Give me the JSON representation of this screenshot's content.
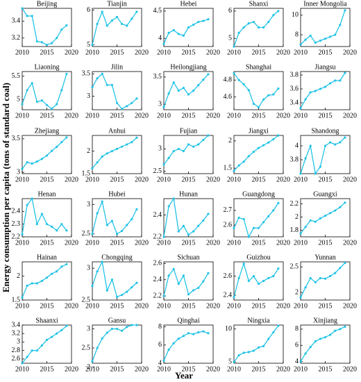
{
  "ylabel": "Energy consumption per capita (tons of standard coal)",
  "xlabel": "Year",
  "chart_data": [
    {
      "type": "line",
      "title": "Beijing",
      "color": "#22c3e6",
      "x": [
        2010,
        2011,
        2012,
        2013,
        2014,
        2015,
        2016,
        2017,
        2018,
        2019
      ],
      "values": [
        3.55,
        3.46,
        3.46,
        3.16,
        3.15,
        3.12,
        3.14,
        3.2,
        3.3,
        3.35
      ],
      "xlim": [
        2010,
        2020
      ],
      "xticks": [
        2010,
        2015,
        2020
      ],
      "ylim": [
        3.1,
        3.55
      ],
      "yticks": [
        3.2,
        3.4
      ]
    },
    {
      "type": "line",
      "title": "Tianjin",
      "color": "#22c3e6",
      "x": [
        2010,
        2011,
        2012,
        2013,
        2014,
        2015,
        2016,
        2017,
        2018,
        2019
      ],
      "values": [
        5.0,
        5.6,
        5.95,
        5.55,
        5.7,
        5.8,
        5.6,
        5.55,
        5.75,
        5.95
      ],
      "xlim": [
        2010,
        2020
      ],
      "xticks": [
        2010,
        2015,
        2020
      ],
      "ylim": [
        4.95,
        6.05
      ],
      "yticks": [
        5,
        6
      ]
    },
    {
      "type": "line",
      "title": "Hebei",
      "color": "#22c3e6",
      "x": [
        2010,
        2011,
        2012,
        2013,
        2014,
        2015,
        2016,
        2017,
        2018,
        2019
      ],
      "values": [
        3.9,
        4.1,
        4.15,
        4.08,
        4.05,
        4.2,
        4.25,
        4.3,
        4.32,
        4.35
      ],
      "xlim": [
        2010,
        2020
      ],
      "xticks": [
        2010,
        2015,
        2020
      ],
      "ylim": [
        3.85,
        4.55
      ],
      "yticks": [
        4,
        4.5
      ]
    },
    {
      "type": "line",
      "title": "Shanxi",
      "color": "#22c3e6",
      "x": [
        2010,
        2011,
        2012,
        2013,
        2014,
        2015,
        2016,
        2017,
        2018,
        2019
      ],
      "values": [
        4.7,
        5.2,
        5.4,
        5.55,
        5.6,
        5.4,
        5.4,
        5.6,
        5.85,
        6.0
      ],
      "xlim": [
        2010,
        2020
      ],
      "xticks": [
        2010,
        2015,
        2020
      ],
      "ylim": [
        4.7,
        6.1
      ],
      "yticks": [
        5,
        6
      ]
    },
    {
      "type": "line",
      "title": "Inner Mongolia",
      "color": "#22c3e6",
      "x": [
        2010,
        2011,
        2012,
        2013,
        2014,
        2015,
        2016,
        2017,
        2018,
        2019
      ],
      "values": [
        7.0,
        7.5,
        7.9,
        7.2,
        7.4,
        7.6,
        7.8,
        8.0,
        9.0,
        10.5
      ],
      "xlim": [
        2010,
        2020
      ],
      "xticks": [
        2010,
        2015,
        2020
      ],
      "ylim": [
        6.8,
        10.7
      ],
      "yticks": [
        8,
        10
      ]
    },
    {
      "type": "line",
      "title": "Liaoning",
      "color": "#22c3e6",
      "x": [
        2010,
        2011,
        2012,
        2013,
        2014,
        2015,
        2016,
        2017,
        2018,
        2019
      ],
      "values": [
        4.9,
        5.2,
        5.35,
        4.95,
        4.98,
        4.88,
        4.8,
        4.9,
        5.2,
        5.55
      ],
      "xlim": [
        2010,
        2020
      ],
      "xticks": [
        2010,
        2015,
        2020
      ],
      "ylim": [
        4.78,
        5.6
      ],
      "yticks": [
        5,
        5.5
      ]
    },
    {
      "type": "line",
      "title": "Jilin",
      "color": "#22c3e6",
      "x": [
        2010,
        2011,
        2012,
        2013,
        2014,
        2015,
        2016,
        2017,
        2018,
        2019
      ],
      "values": [
        3.2,
        3.4,
        3.5,
        3.25,
        3.25,
        2.85,
        2.72,
        2.78,
        2.85,
        2.95
      ],
      "xlim": [
        2010,
        2020
      ],
      "xticks": [
        2010,
        2015,
        2020
      ],
      "ylim": [
        2.7,
        3.55
      ],
      "yticks": [
        3,
        3.5
      ]
    },
    {
      "type": "line",
      "title": "Heilongjiang",
      "color": "#22c3e6",
      "x": [
        2010,
        2011,
        2012,
        2013,
        2014,
        2015,
        2016,
        2017,
        2018,
        2019
      ],
      "values": [
        2.95,
        3.2,
        3.4,
        3.25,
        3.3,
        3.18,
        3.25,
        3.35,
        3.45,
        3.55
      ],
      "xlim": [
        2010,
        2020
      ],
      "xticks": [
        2010,
        2015,
        2020
      ],
      "ylim": [
        2.9,
        3.6
      ],
      "yticks": [
        3,
        3.5
      ]
    },
    {
      "type": "line",
      "title": "Shanghai",
      "color": "#22c3e6",
      "x": [
        2010,
        2011,
        2012,
        2013,
        2014,
        2015,
        2016,
        2017,
        2018,
        2019
      ],
      "values": [
        4.88,
        4.8,
        4.75,
        4.68,
        4.52,
        4.48,
        4.57,
        4.62,
        4.63,
        4.7
      ],
      "xlim": [
        2010,
        2020
      ],
      "xticks": [
        2010,
        2015,
        2020
      ],
      "ylim": [
        4.45,
        4.9
      ],
      "yticks": [
        4.6,
        4.8
      ]
    },
    {
      "type": "line",
      "title": "Jiangsu",
      "color": "#22c3e6",
      "x": [
        2010,
        2011,
        2012,
        2013,
        2014,
        2015,
        2016,
        2017,
        2018,
        2019
      ],
      "values": [
        3.32,
        3.45,
        3.55,
        3.57,
        3.6,
        3.63,
        3.68,
        3.72,
        3.72,
        3.83
      ],
      "xlim": [
        2010,
        2020
      ],
      "xticks": [
        2010,
        2015,
        2020
      ],
      "ylim": [
        3.3,
        3.85
      ],
      "yticks": [
        3.4,
        3.6,
        3.8
      ]
    },
    {
      "type": "line",
      "title": "Zhejiang",
      "color": "#22c3e6",
      "x": [
        2010,
        2011,
        2012,
        2013,
        2014,
        2015,
        2016,
        2017,
        2018,
        2019
      ],
      "values": [
        3.05,
        3.15,
        3.13,
        3.16,
        3.2,
        3.25,
        3.32,
        3.38,
        3.45,
        3.52
      ],
      "xlim": [
        2010,
        2020
      ],
      "xticks": [
        2010,
        2015,
        2020
      ],
      "ylim": [
        2.98,
        3.55
      ],
      "yticks": [
        3,
        3.5
      ]
    },
    {
      "type": "line",
      "title": "Anhui",
      "color": "#22c3e6",
      "x": [
        2010,
        2011,
        2012,
        2013,
        2014,
        2015,
        2016,
        2017,
        2018,
        2019
      ],
      "values": [
        1.62,
        1.75,
        1.88,
        1.95,
        2.0,
        2.05,
        2.1,
        2.15,
        2.2,
        2.3
      ],
      "xlim": [
        2010,
        2020
      ],
      "xticks": [
        2010,
        2015,
        2020
      ],
      "ylim": [
        1.5,
        2.35
      ],
      "yticks": [
        1.5,
        2
      ]
    },
    {
      "type": "line",
      "title": "Fujian",
      "color": "#22c3e6",
      "x": [
        2010,
        2011,
        2012,
        2013,
        2014,
        2015,
        2016,
        2017,
        2018,
        2019
      ],
      "values": [
        2.65,
        2.8,
        2.95,
        3.0,
        2.95,
        3.1,
        3.05,
        3.1,
        3.2,
        3.3
      ],
      "xlim": [
        2010,
        2020
      ],
      "xticks": [
        2010,
        2015,
        2020
      ],
      "ylim": [
        2.45,
        3.3
      ],
      "yticks": [
        2.5,
        3
      ]
    },
    {
      "type": "line",
      "title": "Jiangxi",
      "color": "#22c3e6",
      "x": [
        2010,
        2011,
        2012,
        2013,
        2014,
        2015,
        2016,
        2017,
        2018,
        2019
      ],
      "values": [
        1.45,
        1.55,
        1.62,
        1.72,
        1.8,
        1.87,
        1.92,
        1.97,
        2.03,
        2.1
      ],
      "xlim": [
        2010,
        2020
      ],
      "xticks": [
        2010,
        2015,
        2020
      ],
      "ylim": [
        1.4,
        2.1
      ],
      "yticks": [
        1.5,
        2
      ]
    },
    {
      "type": "line",
      "title": "Shandong",
      "color": "#22c3e6",
      "x": [
        2010,
        2011,
        2012,
        2013,
        2014,
        2015,
        2016,
        2017,
        2018,
        2019
      ],
      "values": [
        3.6,
        3.82,
        4.0,
        3.6,
        3.7,
        4.0,
        4.05,
        4.02,
        4.05,
        4.12
      ],
      "xlim": [
        2010,
        2020
      ],
      "xticks": [
        2010,
        2015,
        2020
      ],
      "ylim": [
        3.6,
        4.15
      ],
      "yticks": [
        3.8,
        4
      ]
    },
    {
      "type": "line",
      "title": "Henan",
      "color": "#22c3e6",
      "x": [
        2010,
        2011,
        2012,
        2013,
        2014,
        2015,
        2016,
        2017,
        2018,
        2019
      ],
      "values": [
        2.22,
        2.45,
        2.5,
        2.3,
        2.38,
        2.3,
        2.28,
        2.25,
        2.3,
        2.25
      ],
      "xlim": [
        2010,
        2020
      ],
      "xticks": [
        2010,
        2015,
        2020
      ],
      "ylim": [
        2.2,
        2.5
      ],
      "yticks": [
        2.2,
        2.3,
        2.4
      ]
    },
    {
      "type": "line",
      "title": "Hubei",
      "color": "#22c3e6",
      "x": [
        2010,
        2011,
        2012,
        2013,
        2014,
        2015,
        2016,
        2017,
        2018,
        2019
      ],
      "values": [
        2.5,
        2.85,
        3.05,
        2.65,
        2.72,
        2.5,
        2.55,
        2.65,
        2.75,
        2.92
      ],
      "xlim": [
        2010,
        2020
      ],
      "xticks": [
        2010,
        2015,
        2020
      ],
      "ylim": [
        2.45,
        3.1
      ],
      "yticks": [
        2.5,
        3
      ]
    },
    {
      "type": "line",
      "title": "Hunan",
      "color": "#22c3e6",
      "x": [
        2010,
        2011,
        2012,
        2013,
        2014,
        2015,
        2016,
        2017,
        2018,
        2019
      ],
      "values": [
        2.2,
        2.48,
        2.55,
        2.25,
        2.3,
        2.22,
        2.25,
        2.3,
        2.35,
        2.41
      ],
      "xlim": [
        2010,
        2020
      ],
      "xticks": [
        2010,
        2015,
        2020
      ],
      "ylim": [
        2.2,
        2.55
      ],
      "yticks": [
        2.2,
        2.4
      ]
    },
    {
      "type": "line",
      "title": "Guangdong",
      "color": "#22c3e6",
      "x": [
        2010,
        2011,
        2012,
        2013,
        2014,
        2015,
        2016,
        2017,
        2018,
        2019
      ],
      "values": [
        2.58,
        2.65,
        2.64,
        2.52,
        2.58,
        2.58,
        2.62,
        2.66,
        2.7,
        2.75
      ],
      "xlim": [
        2010,
        2020
      ],
      "xticks": [
        2010,
        2015,
        2020
      ],
      "ylim": [
        2.52,
        2.78
      ],
      "yticks": [
        2.6,
        2.7
      ]
    },
    {
      "type": "line",
      "title": "Guangxi",
      "color": "#22c3e6",
      "x": [
        2010,
        2011,
        2012,
        2013,
        2014,
        2015,
        2016,
        2017,
        2018,
        2019
      ],
      "values": [
        1.75,
        1.85,
        1.95,
        1.93,
        1.98,
        2.02,
        2.06,
        2.1,
        2.15,
        2.22
      ],
      "xlim": [
        2010,
        2020
      ],
      "xticks": [
        2010,
        2015,
        2020
      ],
      "ylim": [
        1.7,
        2.28
      ],
      "yticks": [
        1.8,
        2,
        2.2
      ]
    },
    {
      "type": "line",
      "title": "Hainan",
      "color": "#22c3e6",
      "x": [
        2010,
        2011,
        2012,
        2013,
        2014,
        2015,
        2016,
        2017,
        2018,
        2019
      ],
      "values": [
        1.55,
        1.8,
        1.85,
        1.85,
        1.9,
        1.97,
        2.05,
        2.1,
        2.2,
        2.25
      ],
      "xlim": [
        2010,
        2020
      ],
      "xticks": [
        2010,
        2015,
        2020
      ],
      "ylim": [
        1.5,
        2.3
      ],
      "yticks": [
        1.5,
        2
      ]
    },
    {
      "type": "line",
      "title": "Chongqing",
      "color": "#22c3e6",
      "x": [
        2010,
        2011,
        2012,
        2013,
        2014,
        2015,
        2016,
        2017,
        2018,
        2019
      ],
      "values": [
        2.72,
        2.95,
        3.1,
        2.65,
        2.82,
        2.55,
        2.58,
        2.63,
        2.7,
        2.77
      ],
      "xlim": [
        2010,
        2020
      ],
      "xticks": [
        2010,
        2015,
        2020
      ],
      "ylim": [
        2.5,
        3.1
      ],
      "yticks": [
        2.5,
        3
      ]
    },
    {
      "type": "line",
      "title": "Sichuan",
      "color": "#22c3e6",
      "x": [
        2010,
        2011,
        2012,
        2013,
        2014,
        2015,
        2016,
        2017,
        2018,
        2019
      ],
      "values": [
        2.2,
        2.45,
        2.53,
        2.35,
        2.45,
        2.22,
        2.27,
        2.3,
        2.38,
        2.48
      ],
      "xlim": [
        2010,
        2020
      ],
      "xticks": [
        2010,
        2015,
        2020
      ],
      "ylim": [
        2.15,
        2.62
      ],
      "yticks": [
        2.2,
        2.4,
        2.6
      ]
    },
    {
      "type": "line",
      "title": "Guizhou",
      "color": "#22c3e6",
      "x": [
        2010,
        2011,
        2012,
        2013,
        2014,
        2015,
        2016,
        2017,
        2018,
        2019
      ],
      "values": [
        2.38,
        2.58,
        2.73,
        2.55,
        2.6,
        2.52,
        2.55,
        2.58,
        2.6,
        2.68
      ],
      "xlim": [
        2010,
        2020
      ],
      "xticks": [
        2010,
        2015,
        2020
      ],
      "ylim": [
        2.35,
        2.75
      ],
      "yticks": [
        2.4,
        2.6
      ]
    },
    {
      "type": "line",
      "title": "Yunnan",
      "color": "#22c3e6",
      "x": [
        2010,
        2011,
        2012,
        2013,
        2014,
        2015,
        2016,
        2017,
        2018,
        2019
      ],
      "values": [
        1.9,
        2.1,
        2.28,
        2.2,
        2.28,
        2.27,
        2.32,
        2.38,
        2.48,
        2.58
      ],
      "xlim": [
        2010,
        2020
      ],
      "xticks": [
        2010,
        2015,
        2020
      ],
      "ylim": [
        1.85,
        2.6
      ],
      "yticks": [
        2,
        2.5
      ]
    },
    {
      "type": "line",
      "title": "Shaanxi",
      "color": "#22c3e6",
      "x": [
        2010,
        2011,
        2012,
        2013,
        2014,
        2015,
        2016,
        2017,
        2018,
        2019
      ],
      "values": [
        2.5,
        2.65,
        2.8,
        2.8,
        2.92,
        3.05,
        3.12,
        3.2,
        3.28,
        3.38
      ],
      "xlim": [
        2010,
        2020
      ],
      "xticks": [
        2010,
        2015,
        2020
      ],
      "ylim": [
        2.5,
        3.4
      ],
      "yticks": [
        2.6,
        2.8,
        3,
        3.2,
        3.4
      ]
    },
    {
      "type": "line",
      "title": "Gansu",
      "color": "#22c3e6",
      "x": [
        2010,
        2011,
        2012,
        2013,
        2014,
        2015,
        2016,
        2017,
        2018,
        2019
      ],
      "values": [
        2.15,
        2.5,
        2.75,
        2.9,
        3.0,
        3.0,
        2.95,
        3.05,
        3.1,
        3.1
      ],
      "xlim": [
        2010,
        2020
      ],
      "xticks": [
        2010,
        2015,
        2020
      ],
      "ylim": [
        2.1,
        3.1
      ],
      "yticks": [
        2,
        2.5,
        3
      ]
    },
    {
      "type": "line",
      "title": "Qinghai",
      "color": "#22c3e6",
      "x": [
        2010,
        2011,
        2012,
        2013,
        2014,
        2015,
        2016,
        2017,
        2018,
        2019
      ],
      "values": [
        4.3,
        5.5,
        6.2,
        6.7,
        7.0,
        7.3,
        7.2,
        7.4,
        7.5,
        7.3
      ],
      "xlim": [
        2010,
        2020
      ],
      "xticks": [
        2010,
        2015,
        2020
      ],
      "ylim": [
        4,
        8.2
      ],
      "yticks": [
        4,
        6,
        8
      ]
    },
    {
      "type": "line",
      "title": "Ningxia",
      "color": "#22c3e6",
      "x": [
        2010,
        2011,
        2012,
        2013,
        2014,
        2015,
        2016,
        2017,
        2018,
        2019
      ],
      "values": [
        5.0,
        6.0,
        6.4,
        6.5,
        6.7,
        7.2,
        7.4,
        8.5,
        9.5,
        10.5
      ],
      "xlim": [
        2010,
        2020
      ],
      "xticks": [
        2010,
        2015,
        2020
      ],
      "ylim": [
        4.8,
        10.6
      ],
      "yticks": [
        5,
        10
      ]
    },
    {
      "type": "line",
      "title": "Xinjiang",
      "color": "#22c3e6",
      "x": [
        2010,
        2011,
        2012,
        2013,
        2014,
        2015,
        2016,
        2017,
        2018,
        2019
      ],
      "values": [
        4.0,
        5.0,
        5.8,
        6.5,
        6.8,
        7.0,
        7.3,
        7.8,
        8.0,
        8.3
      ],
      "xlim": [
        2010,
        2020
      ],
      "xticks": [
        2010,
        2015,
        2020
      ],
      "ylim": [
        3.8,
        8.5
      ],
      "yticks": [
        4,
        6,
        8
      ]
    }
  ]
}
